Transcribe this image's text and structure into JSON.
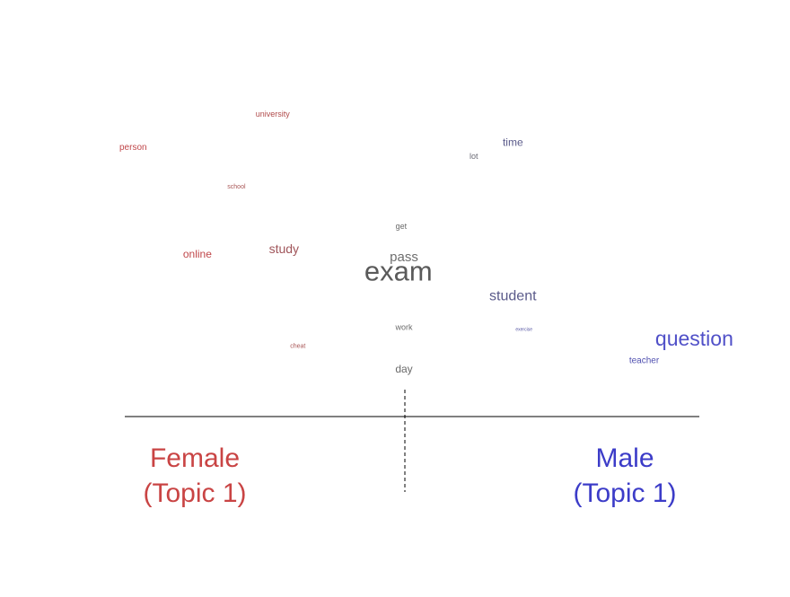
{
  "chart_data": {
    "type": "scatter",
    "title": "",
    "xlabel": "",
    "ylabel": "",
    "description_axis": "x = gender difference in topic word use (negative = Female, positive = Male); y = rank/prevalence spread; size = word frequency",
    "xlim": [
      -1,
      1
    ],
    "ylim": [
      0,
      1
    ],
    "points": [
      {
        "word": "university",
        "x": -0.47,
        "y": 0.98,
        "size": 9,
        "color": "#b04a4a"
      },
      {
        "word": "person",
        "x": -0.97,
        "y": 0.86,
        "size": 10,
        "color": "#c0474a"
      },
      {
        "word": "time",
        "x": 0.39,
        "y": 0.88,
        "size": 12,
        "color": "#5a5a8a"
      },
      {
        "word": "lot",
        "x": 0.25,
        "y": 0.83,
        "size": 9,
        "color": "#6a6a75"
      },
      {
        "word": "school",
        "x": -0.6,
        "y": 0.72,
        "size": 7,
        "color": "#a85555"
      },
      {
        "word": "get",
        "x": -0.01,
        "y": 0.58,
        "size": 9,
        "color": "#6a6a6a"
      },
      {
        "word": "online",
        "x": -0.74,
        "y": 0.48,
        "size": 12,
        "color": "#c0474a"
      },
      {
        "word": "study",
        "x": -0.43,
        "y": 0.5,
        "size": 14,
        "color": "#a0555a"
      },
      {
        "word": "pass",
        "x": -0.0,
        "y": 0.47,
        "size": 15,
        "color": "#6e6e6e"
      },
      {
        "word": "exam",
        "x": -0.02,
        "y": 0.42,
        "size": 31,
        "color": "#5a5a5a"
      },
      {
        "word": "student",
        "x": 0.39,
        "y": 0.33,
        "size": 16,
        "color": "#5a5a8a"
      },
      {
        "word": "work",
        "x": -0.0,
        "y": 0.22,
        "size": 9,
        "color": "#6a6a6a"
      },
      {
        "word": "exercise",
        "x": 0.43,
        "y": 0.21,
        "size": 5,
        "color": "#5050a0"
      },
      {
        "word": "question",
        "x": 1.04,
        "y": 0.18,
        "size": 23,
        "color": "#5050c8"
      },
      {
        "word": "cheat",
        "x": -0.38,
        "y": 0.15,
        "size": 7,
        "color": "#a85555"
      },
      {
        "word": "teacher",
        "x": 0.86,
        "y": 0.1,
        "size": 10,
        "color": "#5050b0"
      },
      {
        "word": "day",
        "x": -0.0,
        "y": 0.07,
        "size": 12,
        "color": "#6a6a6a"
      }
    ],
    "groups": {
      "left": {
        "line1": "Female",
        "line2": "(Topic 1)",
        "color": "#c94444"
      },
      "right": {
        "line1": "Male",
        "line2": "(Topic 1)",
        "color": "#3c3cc8"
      }
    },
    "baseline": true,
    "center_divider": true
  }
}
